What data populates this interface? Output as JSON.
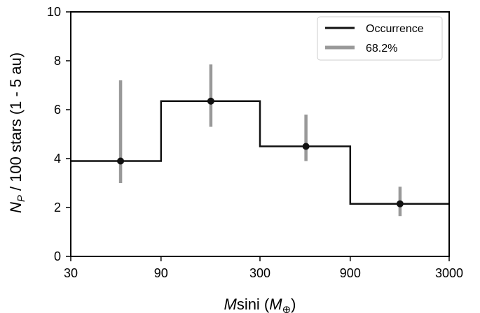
{
  "chart_data": {
    "type": "line",
    "xscale": "log",
    "xlim": [
      30,
      3000
    ],
    "ylim": [
      0,
      10
    ],
    "xticks": [
      30,
      90,
      300,
      900,
      3000
    ],
    "xtick_labels": [
      "30",
      "90",
      "300",
      "900",
      "3000"
    ],
    "yticks": [
      0,
      2,
      4,
      6,
      8,
      10
    ],
    "ytick_labels": [
      "0",
      "2",
      "4",
      "6",
      "8",
      "10"
    ],
    "xlabel": {
      "italic": "M",
      "roman": "sini (",
      "italic2": "M",
      "sub": "⊕",
      "close": ")"
    },
    "ylabel": {
      "italic": "N",
      "sub": "P",
      "rest": " / 100 stars (1 - 5 au)"
    },
    "grid": false,
    "legend_position": "top-right",
    "legend": [
      {
        "label": "Occurrence",
        "color": "#111111"
      },
      {
        "label": "68.2%",
        "color": "#999999"
      }
    ],
    "bins": [
      {
        "x0": 30,
        "x1": 90,
        "value": 3.9
      },
      {
        "x0": 90,
        "x1": 300,
        "value": 6.35
      },
      {
        "x0": 300,
        "x1": 900,
        "value": 4.5
      },
      {
        "x0": 900,
        "x1": 3000,
        "value": 2.15
      }
    ],
    "points": [
      {
        "x": 55,
        "y": 3.9,
        "lo": 3.0,
        "hi": 7.2
      },
      {
        "x": 165,
        "y": 6.35,
        "lo": 5.3,
        "hi": 7.85
      },
      {
        "x": 525,
        "y": 4.5,
        "lo": 3.9,
        "hi": 5.8
      },
      {
        "x": 1650,
        "y": 2.15,
        "lo": 1.65,
        "hi": 2.85
      }
    ],
    "colors": {
      "step": "#111111",
      "errorbar": "#999999",
      "point": "#111111"
    }
  }
}
